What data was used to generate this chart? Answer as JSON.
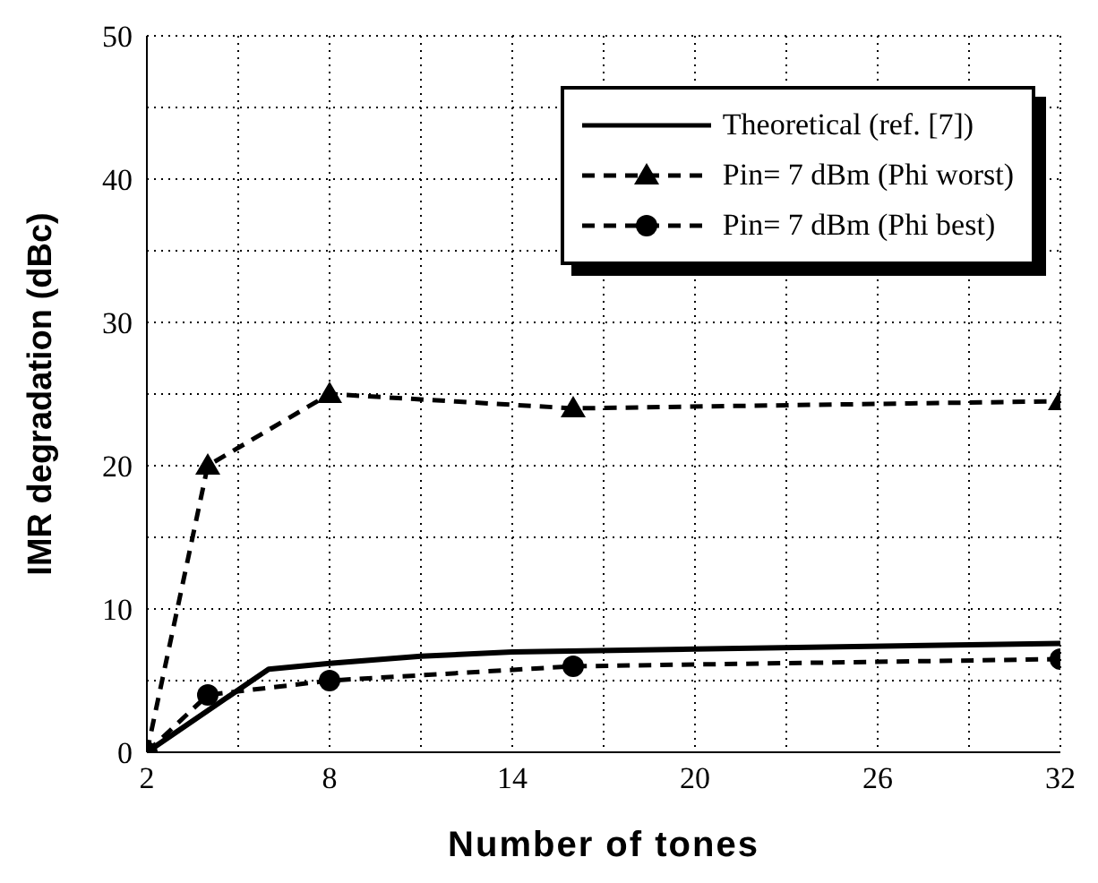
{
  "chart_data": {
    "type": "line",
    "xlabel": "Number of tones",
    "ylabel": "IMR degradation (dBc)",
    "xlim": [
      2,
      32
    ],
    "xticks": [
      2,
      {
        "value": 5,
        "label": null
      },
      8,
      {
        "value": 11,
        "label": null
      },
      14,
      {
        "value": 17,
        "label": null
      },
      20,
      {
        "value": 23,
        "label": null
      },
      26,
      {
        "value": 29,
        "label": null
      },
      32
    ],
    "ylim": [
      0,
      50
    ],
    "yticks": [
      0,
      {
        "value": 5,
        "label": null
      },
      10,
      {
        "value": 15,
        "label": null
      },
      20,
      {
        "value": 25,
        "label": null
      },
      30,
      {
        "value": 35,
        "label": null
      },
      40,
      {
        "value": 45,
        "label": null
      },
      50
    ],
    "grid": true,
    "legend": "top right",
    "series": [
      {
        "name": "Theoretical (ref. [7])",
        "color": "#000000",
        "line_style": "solid",
        "marker": "none",
        "x": [
          2,
          6,
          8,
          11,
          14,
          20,
          32
        ],
        "values": [
          0,
          5.8,
          6.2,
          6.7,
          7,
          7.2,
          7.6
        ]
      },
      {
        "name": "Pin= 7 dBm (Phi worst)",
        "color": "#000000",
        "line_style": "dashed",
        "marker": "triangle",
        "x": [
          2,
          4,
          8,
          16,
          32
        ],
        "values": [
          0,
          20,
          25,
          24,
          24.5
        ]
      },
      {
        "name": "Pin= 7 dBm (Phi best)",
        "color": "#000000",
        "line_style": "dashed",
        "marker": "circle",
        "x": [
          2,
          4,
          8,
          16,
          32
        ],
        "values": [
          0,
          4,
          5,
          6,
          6.5
        ]
      }
    ]
  }
}
